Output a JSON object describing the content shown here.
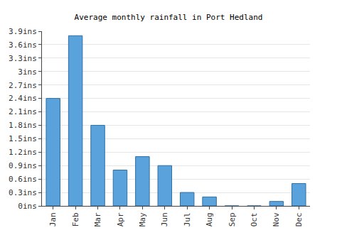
{
  "chart_data": {
    "type": "bar",
    "title": "Average monthly rainfall in Port Hedland",
    "categories": [
      "Jan",
      "Feb",
      "Mar",
      "Apr",
      "May",
      "Jun",
      "Jul",
      "Aug",
      "Sep",
      "Oct",
      "Nov",
      "Dec"
    ],
    "values": [
      2.4,
      3.8,
      1.8,
      0.8,
      1.1,
      0.9,
      0.3,
      0.2,
      0,
      0,
      0.1,
      0.5
    ],
    "color": "#5aa2dc",
    "ylim": [
      0,
      3.9
    ],
    "yticks": [
      {
        "value": 0,
        "label": "0ins"
      },
      {
        "value": 0.3,
        "label": "0.3ins"
      },
      {
        "value": 0.6,
        "label": "0.6ins"
      },
      {
        "value": 0.9,
        "label": "0.9ins"
      },
      {
        "value": 1.2,
        "label": "1.2ins"
      },
      {
        "value": 1.5,
        "label": "1.5ins"
      },
      {
        "value": 1.8,
        "label": "1.8ins"
      },
      {
        "value": 2.1,
        "label": "2.1ins"
      },
      {
        "value": 2.4,
        "label": "2.4ins"
      },
      {
        "value": 2.7,
        "label": "2.7ins"
      },
      {
        "value": 3,
        "label": "3ins"
      },
      {
        "value": 3.3,
        "label": "3.3ins"
      },
      {
        "value": 3.6,
        "label": "3.6ins"
      },
      {
        "value": 3.9,
        "label": "3.9ins"
      }
    ],
    "grid": true
  }
}
